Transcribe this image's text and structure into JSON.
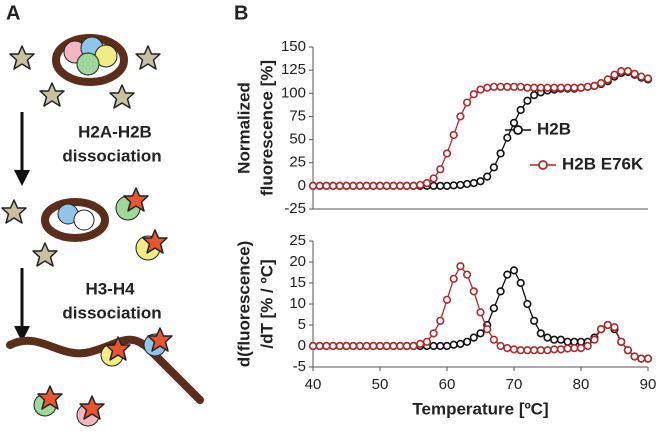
{
  "panel_a": {
    "label": "A",
    "steps": [
      [
        "H2A-H2B",
        "dissociation"
      ],
      [
        "H3-H4",
        "dissociation"
      ]
    ]
  },
  "panel_b_label": "B",
  "chart_data": [
    {
      "type": "line",
      "ylabel": [
        "Normalized",
        "fluorescence [%]"
      ],
      "x": [
        40,
        41,
        42,
        43,
        44,
        45,
        46,
        47,
        48,
        49,
        50,
        51,
        52,
        53,
        54,
        55,
        56,
        57,
        58,
        59,
        60,
        61,
        62,
        63,
        64,
        65,
        66,
        67,
        68,
        69,
        70,
        71,
        72,
        73,
        74,
        75,
        76,
        77,
        78,
        79,
        80,
        81,
        82,
        83,
        84,
        85,
        86,
        87,
        88,
        89,
        90
      ],
      "xlim": [
        40,
        90
      ],
      "ylim": [
        -25,
        150
      ],
      "yticks": [
        -25,
        0,
        25,
        50,
        75,
        100,
        125,
        150
      ],
      "legend": "right",
      "series": [
        {
          "name": "H2B",
          "color": "#111111",
          "values": [
            0,
            0,
            0,
            0,
            0,
            0,
            0,
            0,
            0,
            0,
            0,
            0,
            0,
            0,
            0,
            0,
            0,
            0,
            0,
            0,
            0,
            0.5,
            1,
            2,
            3,
            5,
            10,
            20,
            35,
            52,
            68,
            82,
            92,
            98,
            101,
            103,
            104,
            105,
            105,
            105,
            106,
            107,
            108,
            110,
            113,
            118,
            122,
            123,
            120,
            117,
            115
          ]
        },
        {
          "name": "H2B E76K",
          "color": "#b02a2a",
          "values": [
            0,
            0,
            0,
            0,
            0,
            0,
            0,
            0,
            0,
            0,
            0,
            0,
            0,
            0,
            0,
            0,
            1,
            3,
            8,
            18,
            35,
            55,
            75,
            90,
            99,
            104,
            106,
            107,
            107,
            107,
            107,
            107,
            106,
            106,
            106,
            106,
            106,
            106,
            106,
            106,
            106,
            107,
            108,
            111,
            115,
            120,
            124,
            124,
            121,
            118,
            116
          ]
        }
      ]
    },
    {
      "type": "line",
      "ylabel": [
        "d(fluorescence)",
        "/dT [% / ºC]"
      ],
      "xlabel": "Temperature [ºC]",
      "x": [
        40,
        41,
        42,
        43,
        44,
        45,
        46,
        47,
        48,
        49,
        50,
        51,
        52,
        53,
        54,
        55,
        56,
        57,
        58,
        59,
        60,
        61,
        62,
        63,
        64,
        65,
        66,
        67,
        68,
        69,
        70,
        71,
        72,
        73,
        74,
        75,
        76,
        77,
        78,
        79,
        80,
        81,
        82,
        83,
        84,
        85,
        86,
        87,
        88,
        89,
        90
      ],
      "xlim": [
        40,
        90
      ],
      "xticks": [
        40,
        50,
        60,
        70,
        80,
        90
      ],
      "ylim": [
        -5,
        25
      ],
      "yticks": [
        -5,
        0,
        5,
        10,
        15,
        20,
        25
      ],
      "series": [
        {
          "name": "H2B",
          "color": "#111111",
          "values": [
            0,
            0,
            0,
            0,
            0,
            0,
            0,
            0,
            0,
            0,
            0,
            0,
            0,
            0,
            0,
            0,
            0,
            0,
            0,
            0,
            0,
            0.3,
            0.5,
            1,
            2,
            3,
            5,
            9,
            13,
            17,
            18,
            15,
            10,
            6,
            3,
            2,
            1.5,
            1.5,
            1,
            1,
            1,
            1,
            2,
            4,
            5,
            4,
            1,
            -1,
            -2.5,
            -3,
            -3
          ]
        },
        {
          "name": "H2B E76K",
          "color": "#b02a2a",
          "values": [
            0,
            0,
            0,
            0,
            0,
            0,
            0,
            0,
            0,
            0,
            0,
            0,
            0,
            0,
            0,
            0,
            0.5,
            1,
            3,
            6,
            11,
            16,
            19,
            17,
            13,
            8,
            4,
            1.5,
            0,
            -0.5,
            -0.8,
            -1,
            -1,
            -1,
            -1,
            -1,
            -0.8,
            -0.8,
            -0.6,
            -0.5,
            -0.5,
            0,
            1.5,
            4,
            5,
            4.5,
            1,
            -1,
            -2.5,
            -3,
            -3
          ]
        }
      ]
    }
  ]
}
